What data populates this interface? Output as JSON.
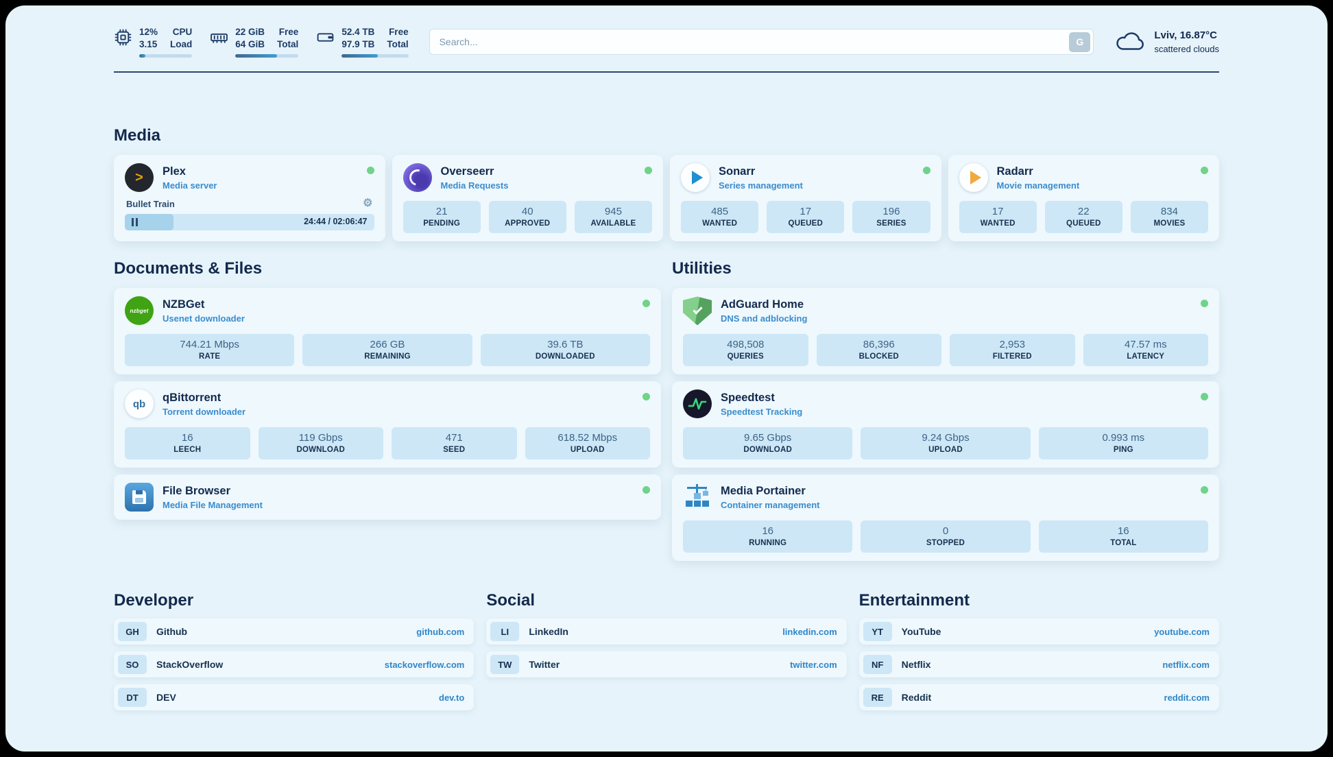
{
  "colors": {
    "accent": "#2f86c9",
    "online_dot": "#6fd389",
    "text_navy": "#13294d",
    "chip_bg": "#cde7f6",
    "page_bg": "#e6f3fa"
  },
  "topbar": {
    "cpu": {
      "value_top": "12%",
      "value_bottom": "3.15",
      "label_top": "CPU",
      "label_bottom": "Load",
      "progress_percent": 12
    },
    "memory": {
      "value_top": "22 GiB",
      "value_bottom": "64 GiB",
      "label_top": "Free",
      "label_bottom": "Total",
      "progress_percent": 66
    },
    "storage": {
      "value_top": "52.4 TB",
      "value_bottom": "97.9 TB",
      "label_top": "Free",
      "label_bottom": "Total",
      "progress_percent": 54
    },
    "search": {
      "placeholder": "Search...",
      "button_label": "G"
    },
    "weather": {
      "location": "Lviv, 16.87°C",
      "condition": "scattered clouds"
    }
  },
  "sections": {
    "media": "Media",
    "documents": "Documents & Files",
    "utilities": "Utilities",
    "developer": "Developer",
    "social": "Social",
    "entertainment": "Entertainment"
  },
  "apps": {
    "plex": {
      "name": "Plex",
      "subtitle": "Media server",
      "player": {
        "title": "Bullet Train",
        "time": "24:44 / 02:06:47",
        "progress_percent": 19.5
      }
    },
    "overseerr": {
      "name": "Overseerr",
      "subtitle": "Media Requests",
      "stats": [
        {
          "value": "21",
          "label": "PENDING"
        },
        {
          "value": "40",
          "label": "APPROVED"
        },
        {
          "value": "945",
          "label": "AVAILABLE"
        }
      ]
    },
    "sonarr": {
      "name": "Sonarr",
      "subtitle": "Series management",
      "stats": [
        {
          "value": "485",
          "label": "WANTED"
        },
        {
          "value": "17",
          "label": "QUEUED"
        },
        {
          "value": "196",
          "label": "SERIES"
        }
      ]
    },
    "radarr": {
      "name": "Radarr",
      "subtitle": "Movie management",
      "stats": [
        {
          "value": "17",
          "label": "WANTED"
        },
        {
          "value": "22",
          "label": "QUEUED"
        },
        {
          "value": "834",
          "label": "MOVIES"
        }
      ]
    },
    "nzbget": {
      "name": "NZBGet",
      "subtitle": "Usenet downloader",
      "icon_text": "nzbget",
      "stats": [
        {
          "value": "744.21 Mbps",
          "label": "RATE"
        },
        {
          "value": "266 GB",
          "label": "REMAINING"
        },
        {
          "value": "39.6 TB",
          "label": "DOWNLOADED"
        }
      ]
    },
    "qbittorrent": {
      "name": "qBittorrent",
      "subtitle": "Torrent downloader",
      "icon_text": "qb",
      "stats": [
        {
          "value": "16",
          "label": "LEECH"
        },
        {
          "value": "119 Gbps",
          "label": "DOWNLOAD"
        },
        {
          "value": "471",
          "label": "SEED"
        },
        {
          "value": "618.52 Mbps",
          "label": "UPLOAD"
        }
      ]
    },
    "filebrowser": {
      "name": "File Browser",
      "subtitle": "Media File Management"
    },
    "adguard": {
      "name": "AdGuard Home",
      "subtitle": "DNS and adblocking",
      "stats": [
        {
          "value": "498,508",
          "label": "QUERIES"
        },
        {
          "value": "86,396",
          "label": "BLOCKED"
        },
        {
          "value": "2,953",
          "label": "FILTERED"
        },
        {
          "value": "47.57 ms",
          "label": "LATENCY"
        }
      ]
    },
    "speedtest": {
      "name": "Speedtest",
      "subtitle": "Speedtest Tracking",
      "stats": [
        {
          "value": "9.65 Gbps",
          "label": "DOWNLOAD"
        },
        {
          "value": "9.24 Gbps",
          "label": "UPLOAD"
        },
        {
          "value": "0.993 ms",
          "label": "PING"
        }
      ]
    },
    "portainer": {
      "name": "Media Portainer",
      "subtitle": "Container management",
      "stats": [
        {
          "value": "16",
          "label": "RUNNING"
        },
        {
          "value": "0",
          "label": "STOPPED"
        },
        {
          "value": "16",
          "label": "TOTAL"
        }
      ]
    }
  },
  "links": {
    "developer": [
      {
        "abbr": "GH",
        "name": "Github",
        "url": "github.com"
      },
      {
        "abbr": "SO",
        "name": "StackOverflow",
        "url": "stackoverflow.com"
      },
      {
        "abbr": "DT",
        "name": "DEV",
        "url": "dev.to"
      }
    ],
    "social": [
      {
        "abbr": "LI",
        "name": "LinkedIn",
        "url": "linkedin.com"
      },
      {
        "abbr": "TW",
        "name": "Twitter",
        "url": "twitter.com"
      }
    ],
    "entertainment": [
      {
        "abbr": "YT",
        "name": "YouTube",
        "url": "youtube.com"
      },
      {
        "abbr": "NF",
        "name": "Netflix",
        "url": "netflix.com"
      },
      {
        "abbr": "RE",
        "name": "Reddit",
        "url": "reddit.com"
      }
    ]
  }
}
